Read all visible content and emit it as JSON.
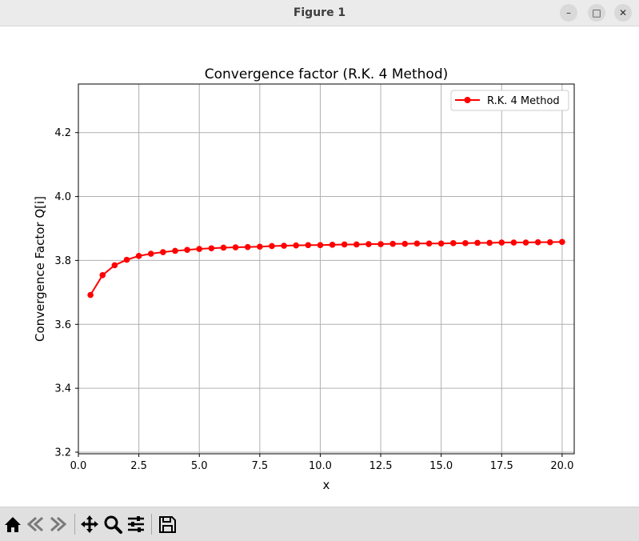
{
  "window": {
    "title": "Figure 1",
    "controls": [
      "minimize",
      "maximize",
      "close"
    ]
  },
  "toolbar": {
    "icons": [
      "home-icon",
      "back-icon",
      "forward-icon",
      "pan-icon",
      "zoom-icon",
      "configure-subplots-icon",
      "save-icon"
    ]
  },
  "chart_data": {
    "type": "line",
    "title": "Convergence factor (R.K. 4 Method)",
    "xlabel": "x",
    "ylabel": "Convergence Factor Q[i]",
    "xlim": [
      0.0,
      20.5
    ],
    "ylim": [
      3.195,
      4.352
    ],
    "xticks": [
      "0.0",
      "2.5",
      "5.0",
      "7.5",
      "10.0",
      "12.5",
      "15.0",
      "17.5",
      "20.0"
    ],
    "yticks": [
      "3.2",
      "3.4",
      "3.6",
      "3.8",
      "4.0",
      "4.2"
    ],
    "grid": true,
    "legend_position": "top-right",
    "line_color": "#ff0000",
    "series": [
      {
        "name": "R.K. 4 Method",
        "marker": "circle",
        "x": [
          0.5,
          1.0,
          1.5,
          2.0,
          2.5,
          3.0,
          3.5,
          4.0,
          4.5,
          5.0,
          5.5,
          6.0,
          6.5,
          7.0,
          7.5,
          8.0,
          8.5,
          9.0,
          9.5,
          10.0,
          10.5,
          11.0,
          11.5,
          12.0,
          12.5,
          13.0,
          13.5,
          14.0,
          14.5,
          15.0,
          15.5,
          16.0,
          16.5,
          17.0,
          17.5,
          18.0,
          18.5,
          19.0,
          19.5,
          20.0
        ],
        "values": [
          3.692,
          3.754,
          3.785,
          3.802,
          3.814,
          3.821,
          3.826,
          3.83,
          3.833,
          3.836,
          3.838,
          3.84,
          3.841,
          3.842,
          3.843,
          3.845,
          3.846,
          3.847,
          3.848,
          3.848,
          3.849,
          3.85,
          3.85,
          3.851,
          3.851,
          3.852,
          3.852,
          3.853,
          3.853,
          3.853,
          3.854,
          3.854,
          3.855,
          3.855,
          3.856,
          3.856,
          3.856,
          3.857,
          3.857,
          3.858
        ]
      }
    ]
  }
}
